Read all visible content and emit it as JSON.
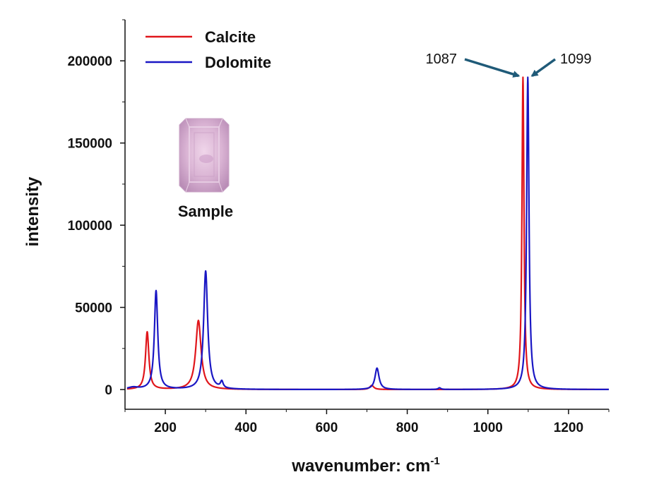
{
  "chart_data": {
    "type": "line",
    "xlabel": "wavenumber: cm",
    "xlabel_sup": "-1",
    "ylabel": "intensity",
    "xlim": [
      100,
      1300
    ],
    "ylim": [
      -12000,
      225000
    ],
    "xticks": [
      200,
      400,
      600,
      800,
      1000,
      1200
    ],
    "yticks": [
      0,
      50000,
      100000,
      150000,
      200000
    ],
    "grid": false,
    "legend": "top-left",
    "series": [
      {
        "name": "Calcite",
        "color": "#e0161b",
        "peaks": [
          {
            "x": 155,
            "height": 35000,
            "width": 5
          },
          {
            "x": 282,
            "height": 42000,
            "width": 8
          },
          {
            "x": 712,
            "height": 2500,
            "width": 6
          },
          {
            "x": 1087,
            "height": 190000,
            "width": 3
          }
        ]
      },
      {
        "name": "Dolomite",
        "color": "#1a17c4",
        "peaks": [
          {
            "x": 120,
            "height": 1200,
            "width": 15
          },
          {
            "x": 177,
            "height": 60000,
            "width": 5
          },
          {
            "x": 300,
            "height": 72000,
            "width": 6
          },
          {
            "x": 340,
            "height": 4000,
            "width": 4
          },
          {
            "x": 725,
            "height": 13000,
            "width": 6
          },
          {
            "x": 880,
            "height": 1000,
            "width": 4
          },
          {
            "x": 1099,
            "height": 190000,
            "width": 3.5
          }
        ]
      }
    ],
    "annotations": [
      {
        "label": "1087",
        "x": 1087,
        "y": 190000
      },
      {
        "label": "1099",
        "x": 1099,
        "y": 190000
      }
    ],
    "arrow_color": "#1f5a78"
  },
  "sample_label": "Sample",
  "sample_icon": "pink-gem-icon"
}
